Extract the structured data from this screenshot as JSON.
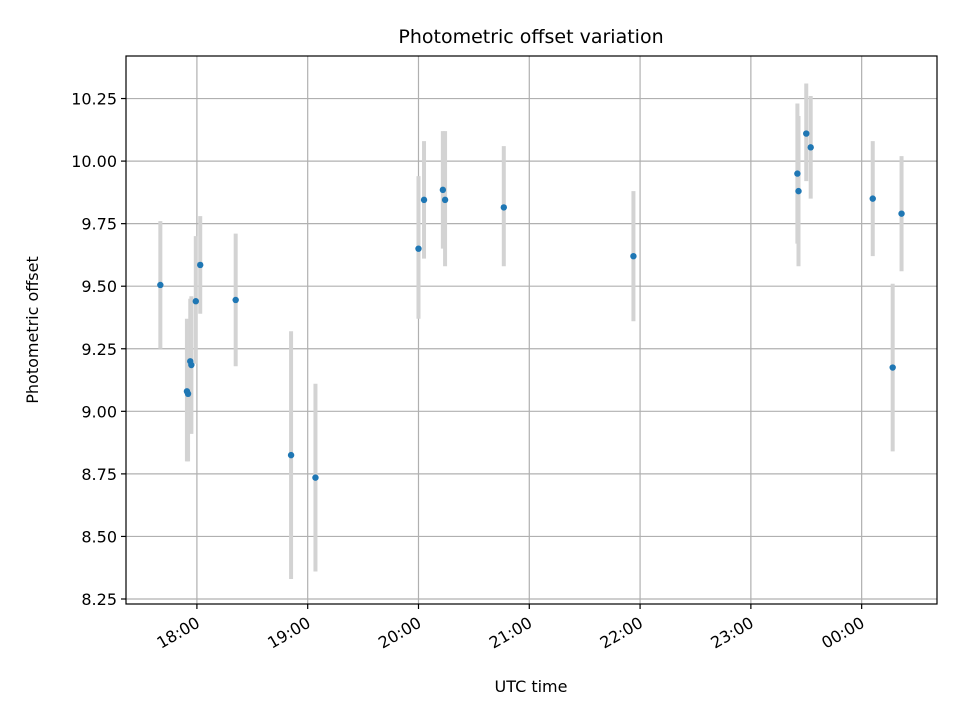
{
  "chart_data": {
    "type": "scatter",
    "title": "Photometric offset variation",
    "xlabel": "UTC time",
    "ylabel": "Photometric offset",
    "x_unit": "UTC time (hours after 00:00 of the first day)",
    "xlim": [
      17.36,
      24.68
    ],
    "ylim": [
      8.23,
      10.42
    ],
    "grid": true,
    "x_ticks": [
      {
        "value": 18,
        "label": "18:00"
      },
      {
        "value": 19,
        "label": "19:00"
      },
      {
        "value": 20,
        "label": "20:00"
      },
      {
        "value": 21,
        "label": "21:00"
      },
      {
        "value": 22,
        "label": "22:00"
      },
      {
        "value": 23,
        "label": "23:00"
      },
      {
        "value": 24,
        "label": "00:00"
      }
    ],
    "y_ticks": [
      {
        "value": 8.25,
        "label": "8.25"
      },
      {
        "value": 8.5,
        "label": "8.50"
      },
      {
        "value": 8.75,
        "label": "8.75"
      },
      {
        "value": 9.0,
        "label": "9.00"
      },
      {
        "value": 9.25,
        "label": "9.25"
      },
      {
        "value": 9.5,
        "label": "9.50"
      },
      {
        "value": 9.75,
        "label": "9.75"
      },
      {
        "value": 10.0,
        "label": "10.00"
      },
      {
        "value": 10.25,
        "label": "10.25"
      }
    ],
    "colors": {
      "points": "#1f77b4",
      "errorbars": "#d3d3d3",
      "grid": "#b0b0b0"
    },
    "points": [
      {
        "x": 17.67,
        "y": 9.505,
        "ylo": 9.25,
        "yhi": 9.76
      },
      {
        "x": 17.91,
        "y": 9.08,
        "ylo": 8.8,
        "yhi": 9.37
      },
      {
        "x": 17.92,
        "y": 9.07,
        "ylo": 8.8,
        "yhi": 9.35
      },
      {
        "x": 17.94,
        "y": 9.2,
        "ylo": 8.92,
        "yhi": 9.45
      },
      {
        "x": 17.95,
        "y": 9.185,
        "ylo": 8.91,
        "yhi": 9.46
      },
      {
        "x": 17.99,
        "y": 9.44,
        "ylo": 9.19,
        "yhi": 9.7
      },
      {
        "x": 18.03,
        "y": 9.585,
        "ylo": 9.39,
        "yhi": 9.78
      },
      {
        "x": 18.35,
        "y": 9.445,
        "ylo": 9.18,
        "yhi": 9.71
      },
      {
        "x": 18.85,
        "y": 8.825,
        "ylo": 8.33,
        "yhi": 9.32
      },
      {
        "x": 19.07,
        "y": 8.735,
        "ylo": 8.36,
        "yhi": 9.11
      },
      {
        "x": 20.0,
        "y": 9.65,
        "ylo": 9.37,
        "yhi": 9.94
      },
      {
        "x": 20.05,
        "y": 9.845,
        "ylo": 9.61,
        "yhi": 10.08
      },
      {
        "x": 20.22,
        "y": 9.885,
        "ylo": 9.65,
        "yhi": 10.12
      },
      {
        "x": 20.24,
        "y": 9.845,
        "ylo": 9.58,
        "yhi": 10.12
      },
      {
        "x": 20.77,
        "y": 9.815,
        "ylo": 9.58,
        "yhi": 10.06
      },
      {
        "x": 21.94,
        "y": 9.62,
        "ylo": 9.36,
        "yhi": 9.88
      },
      {
        "x": 23.42,
        "y": 9.95,
        "ylo": 9.67,
        "yhi": 10.23
      },
      {
        "x": 23.43,
        "y": 9.88,
        "ylo": 9.58,
        "yhi": 10.18
      },
      {
        "x": 23.5,
        "y": 10.11,
        "ylo": 9.92,
        "yhi": 10.31
      },
      {
        "x": 23.54,
        "y": 10.055,
        "ylo": 9.85,
        "yhi": 10.26
      },
      {
        "x": 24.1,
        "y": 9.85,
        "ylo": 9.62,
        "yhi": 10.08
      },
      {
        "x": 24.28,
        "y": 9.175,
        "ylo": 8.84,
        "yhi": 9.51
      },
      {
        "x": 24.36,
        "y": 9.79,
        "ylo": 9.56,
        "yhi": 10.02
      }
    ]
  }
}
